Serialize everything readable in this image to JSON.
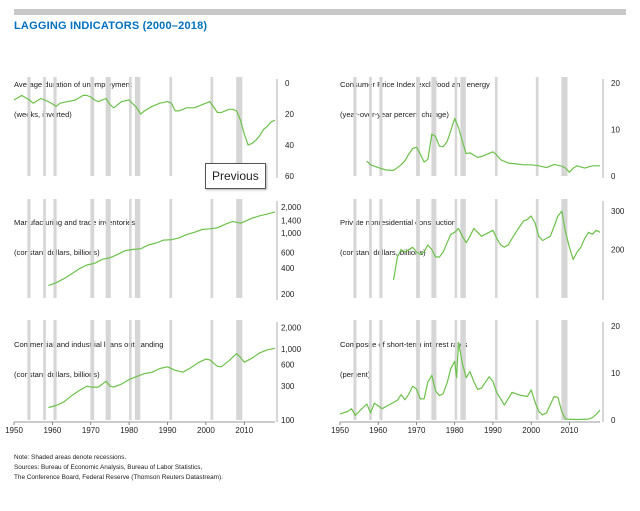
{
  "page": {
    "title": "LAGGING INDICATORS (2000–2018)",
    "title_color": "#0070c0",
    "line_color": "#6cc24a",
    "recession_color": "#d6d6d6"
  },
  "tooltip": {
    "text": "Previous"
  },
  "notes": {
    "line1": "Note: Shaded areas denote recessions.",
    "line2": "Sources: Bureau of Economic Analysis, Bureau of Labor Statistics,",
    "line3": "The Conference Board, Federal Reserve (Thomson Reuters Datastream)."
  },
  "chart_data": [
    {
      "type": "line",
      "title_lines": [
        "Average duration of unemployment",
        "(weeks, inverted)"
      ],
      "inverted": true,
      "ylim": [
        0,
        60
      ],
      "yticks": [
        "0",
        "20",
        "40",
        "60"
      ],
      "xlim": [
        1950,
        2018
      ],
      "xticks": [],
      "recessions": [
        [
          1953.5,
          1954.3
        ],
        [
          1957.6,
          1958.3
        ],
        [
          1960.3,
          1961.1
        ],
        [
          1969.9,
          1970.9
        ],
        [
          1973.9,
          1975.2
        ],
        [
          1980.0,
          1980.5
        ],
        [
          1981.5,
          1982.9
        ],
        [
          1990.5,
          1991.2
        ],
        [
          2001.2,
          2001.9
        ],
        [
          2007.9,
          2009.5
        ]
      ],
      "series": [
        {
          "x": [
            1950,
            1952,
            1954,
            1955,
            1957,
            1959,
            1961,
            1962,
            1964,
            1966,
            1968,
            1969,
            1970,
            1971,
            1972,
            1974,
            1975,
            1976,
            1977,
            1978,
            1980,
            1982,
            1983,
            1984,
            1986,
            1988,
            1990,
            1991,
            1992,
            1993,
            1995,
            1997,
            1999,
            2000,
            2001,
            2003,
            2004,
            2006,
            2007,
            2008,
            2009,
            2010,
            2011,
            2012,
            2013,
            2014,
            2015,
            2016,
            2017,
            2018
          ],
          "y": [
            11,
            8,
            11,
            13,
            10,
            12,
            15,
            13,
            12,
            11,
            8,
            8,
            9,
            11,
            12,
            10,
            14,
            16,
            14,
            12,
            11,
            16,
            20,
            18,
            15,
            13,
            12,
            13,
            18,
            18,
            16,
            16,
            14,
            13,
            12,
            19,
            19,
            17,
            17,
            18,
            24,
            33,
            40,
            39,
            37,
            34,
            30,
            28,
            25,
            24
          ]
        }
      ]
    },
    {
      "type": "line",
      "title_lines": [
        "Consumer Price Index excl. food and energy",
        "(year-over-year percent change)"
      ],
      "ylim": [
        0,
        20
      ],
      "yticks": [
        "0",
        "10",
        "20"
      ],
      "xlim": [
        1950,
        2018
      ],
      "xticks": [],
      "recessions": [
        [
          1953.5,
          1954.3
        ],
        [
          1957.6,
          1958.3
        ],
        [
          1960.3,
          1961.1
        ],
        [
          1969.9,
          1970.9
        ],
        [
          1973.9,
          1975.2
        ],
        [
          1980.0,
          1980.5
        ],
        [
          1981.5,
          1982.9
        ],
        [
          1990.5,
          1991.2
        ],
        [
          2001.2,
          2001.9
        ],
        [
          2007.9,
          2009.5
        ]
      ],
      "series": [
        {
          "x": [
            1957,
            1958,
            1960,
            1962,
            1964,
            1966,
            1967,
            1968,
            1969,
            1970,
            1971,
            1972,
            1973,
            1974,
            1975,
            1976,
            1977,
            1978,
            1979,
            1980,
            1981,
            1982,
            1983,
            1984,
            1985,
            1986,
            1987,
            1988,
            1990,
            1991,
            1992,
            1994,
            1996,
            1998,
            2000,
            2002,
            2004,
            2006,
            2007,
            2008,
            2009,
            2010,
            2011,
            2012,
            2014,
            2016,
            2018
          ],
          "y": [
            3.2,
            2.4,
            1.8,
            1.3,
            1.2,
            2.4,
            3.3,
            4.7,
            5.9,
            6.2,
            4.7,
            3,
            3.6,
            9,
            8.5,
            6.4,
            6.3,
            7.4,
            9.8,
            12.4,
            10.4,
            7.4,
            4.8,
            5,
            4.5,
            4,
            4.2,
            4.5,
            5.2,
            4.5,
            3.5,
            2.8,
            2.6,
            2.4,
            2.4,
            2.2,
            1.8,
            2.5,
            2.3,
            2.1,
            1.7,
            0.8,
            1.7,
            2.2,
            1.7,
            2.2,
            2.2
          ]
        }
      ]
    },
    {
      "type": "line",
      "log": true,
      "title_lines": [
        "Manufacturing and trade inventories",
        "(constant dollars, billions)"
      ],
      "ylim": [
        180,
        2100
      ],
      "yticks": [
        {
          "v": 200,
          "l": "200"
        },
        {
          "v": 400,
          "l": "400"
        },
        {
          "v": 600,
          "l": "600"
        },
        {
          "v": 1000,
          "l": "1,000"
        },
        {
          "v": 1400,
          "l": "1,400"
        },
        {
          "v": 2000,
          "l": "2,000"
        }
      ],
      "xlim": [
        1950,
        2018
      ],
      "xticks": [],
      "recessions": [
        [
          1953.5,
          1954.3
        ],
        [
          1957.6,
          1958.3
        ],
        [
          1960.3,
          1961.1
        ],
        [
          1969.9,
          1970.9
        ],
        [
          1973.9,
          1975.2
        ],
        [
          1980.0,
          1980.5
        ],
        [
          1981.5,
          1982.9
        ],
        [
          1990.5,
          1991.2
        ],
        [
          2001.2,
          2001.9
        ],
        [
          2007.9,
          2009.5
        ]
      ],
      "series": [
        {
          "x": [
            1959,
            1961,
            1963,
            1965,
            1967,
            1969,
            1971,
            1973,
            1975,
            1977,
            1979,
            1981,
            1983,
            1985,
            1987,
            1989,
            1991,
            1993,
            1995,
            1997,
            1999,
            2001,
            2003,
            2005,
            2007,
            2009,
            2010,
            2012,
            2014,
            2016,
            2018
          ],
          "y": [
            250,
            270,
            300,
            340,
            390,
            430,
            450,
            500,
            520,
            570,
            630,
            650,
            660,
            730,
            770,
            830,
            840,
            880,
            960,
            1020,
            1100,
            1120,
            1150,
            1260,
            1360,
            1300,
            1350,
            1480,
            1580,
            1650,
            1750
          ]
        }
      ]
    },
    {
      "type": "line",
      "log": true,
      "title_lines": [
        "Private nonresidential construction",
        "(constant dollars, billions)"
      ],
      "ylim": [
        120,
        320
      ],
      "yticks": [
        {
          "v": 200,
          "l": "200"
        },
        {
          "v": 300,
          "l": "300"
        }
      ],
      "xlim": [
        1950,
        2018
      ],
      "xticks": [],
      "recessions": [
        [
          1953.5,
          1954.3
        ],
        [
          1957.6,
          1958.3
        ],
        [
          1960.3,
          1961.1
        ],
        [
          1969.9,
          1970.9
        ],
        [
          1973.9,
          1975.2
        ],
        [
          1980.0,
          1980.5
        ],
        [
          1981.5,
          1982.9
        ],
        [
          1990.5,
          1991.2
        ],
        [
          2001.2,
          2001.9
        ],
        [
          2007.9,
          2009.5
        ]
      ],
      "series": [
        {
          "x": [
            1964,
            1965,
            1966,
            1967,
            1968,
            1969,
            1970,
            1971,
            1972,
            1973,
            1974,
            1975,
            1976,
            1977,
            1978,
            1979,
            1980,
            1981,
            1982,
            1983,
            1984,
            1985,
            1986,
            1987,
            1988,
            1989,
            1990,
            1991,
            1992,
            1993,
            1994,
            1995,
            1996,
            1997,
            1998,
            1999,
            2000,
            2001,
            2002,
            2003,
            2004,
            2005,
            2006,
            2007,
            2008,
            2009,
            2010,
            2011,
            2012,
            2013,
            2014,
            2015,
            2016,
            2017,
            2018
          ],
          "y": [
            145,
            185,
            200,
            195,
            200,
            205,
            195,
            190,
            195,
            210,
            200,
            185,
            185,
            195,
            215,
            235,
            240,
            250,
            230,
            215,
            230,
            250,
            240,
            230,
            235,
            240,
            245,
            225,
            210,
            205,
            210,
            225,
            240,
            255,
            270,
            275,
            285,
            265,
            230,
            220,
            225,
            230,
            255,
            285,
            300,
            240,
            205,
            180,
            195,
            205,
            225,
            240,
            235,
            245,
            240
          ]
        }
      ]
    },
    {
      "type": "line",
      "log": true,
      "title_lines": [
        "Commercial and industrial loans outstanding",
        "(constant dollars, billions)"
      ],
      "ylim": [
        100,
        2100
      ],
      "yticks": [
        {
          "v": 100,
          "l": "100"
        },
        {
          "v": 300,
          "l": "300"
        },
        {
          "v": 600,
          "l": "600"
        },
        {
          "v": 1000,
          "l": "1,000"
        },
        {
          "v": 2000,
          "l": "2,000"
        }
      ],
      "xlim": [
        1950,
        2018
      ],
      "xticks": [
        "1950",
        "1960",
        "1970",
        "1980",
        "1990",
        "2000",
        "2010"
      ],
      "recessions": [
        [
          1953.5,
          1954.3
        ],
        [
          1957.6,
          1958.3
        ],
        [
          1960.3,
          1961.1
        ],
        [
          1969.9,
          1970.9
        ],
        [
          1973.9,
          1975.2
        ],
        [
          1980.0,
          1980.5
        ],
        [
          1981.5,
          1982.9
        ],
        [
          1990.5,
          1991.2
        ],
        [
          2001.2,
          2001.9
        ],
        [
          2007.9,
          2009.5
        ]
      ],
      "series": [
        {
          "x": [
            1959,
            1961,
            1963,
            1965,
            1967,
            1969,
            1970,
            1972,
            1974,
            1975,
            1976,
            1978,
            1980,
            1982,
            1984,
            1986,
            1988,
            1990,
            1992,
            1994,
            1996,
            1998,
            2000,
            2001,
            2002,
            2003,
            2004,
            2006,
            2008,
            2009,
            2010,
            2012,
            2014,
            2016,
            2018
          ],
          "y": [
            150,
            160,
            180,
            220,
            260,
            300,
            290,
            290,
            350,
            300,
            290,
            320,
            370,
            410,
            450,
            470,
            530,
            560,
            500,
            470,
            540,
            640,
            720,
            700,
            630,
            570,
            560,
            680,
            860,
            760,
            650,
            740,
            880,
            970,
            1020
          ]
        }
      ]
    },
    {
      "type": "line",
      "title_lines": [
        "Composite of short-term interest rates",
        "(percent)"
      ],
      "ylim": [
        0,
        20
      ],
      "yticks": [
        "0",
        "10",
        "20"
      ],
      "xlim": [
        1950,
        2018
      ],
      "xticks": [
        "1950",
        "1960",
        "1970",
        "1980",
        "1990",
        "2000",
        "2010"
      ],
      "recessions": [
        [
          1953.5,
          1954.3
        ],
        [
          1957.6,
          1958.3
        ],
        [
          1960.3,
          1961.1
        ],
        [
          1969.9,
          1970.9
        ],
        [
          1973.9,
          1975.2
        ],
        [
          1980.0,
          1980.5
        ],
        [
          1981.5,
          1982.9
        ],
        [
          1990.5,
          1991.2
        ],
        [
          2001.2,
          2001.9
        ],
        [
          2007.9,
          2009.5
        ]
      ],
      "series": [
        {
          "x": [
            1950,
            1952,
            1953,
            1954,
            1955,
            1957,
            1958,
            1959,
            1960,
            1961,
            1963,
            1965,
            1966,
            1967,
            1968,
            1969,
            1970,
            1971,
            1972,
            1973,
            1974,
            1975,
            1976,
            1977,
            1978,
            1979,
            1980,
            1980.5,
            1981,
            1982,
            1983,
            1984,
            1985,
            1986,
            1987,
            1989,
            1990,
            1991,
            1993,
            1995,
            1997,
            1999,
            2000,
            2001,
            2002,
            2003,
            2004,
            2006,
            2007,
            2008,
            2009,
            2012,
            2015,
            2016,
            2017,
            2018
          ],
          "y": [
            1.3,
            1.8,
            2.4,
            1,
            1.8,
            3.4,
            1.5,
            3.6,
            3,
            2.4,
            3.3,
            4.2,
            5.4,
            4.3,
            5.5,
            7.2,
            6.6,
            4.5,
            4.5,
            8.1,
            9.5,
            6.2,
            5.2,
            5.6,
            7.9,
            11,
            12.5,
            9,
            16.5,
            12,
            9,
            10.3,
            8.2,
            6.5,
            6.8,
            9.2,
            8.2,
            5.8,
            3.2,
            5.9,
            5.3,
            5,
            6.4,
            3.8,
            1.8,
            1.1,
            1.5,
            5,
            4.8,
            1.8,
            0.2,
            0.1,
            0.2,
            0.5,
            1.2,
            2.1
          ]
        }
      ]
    }
  ]
}
